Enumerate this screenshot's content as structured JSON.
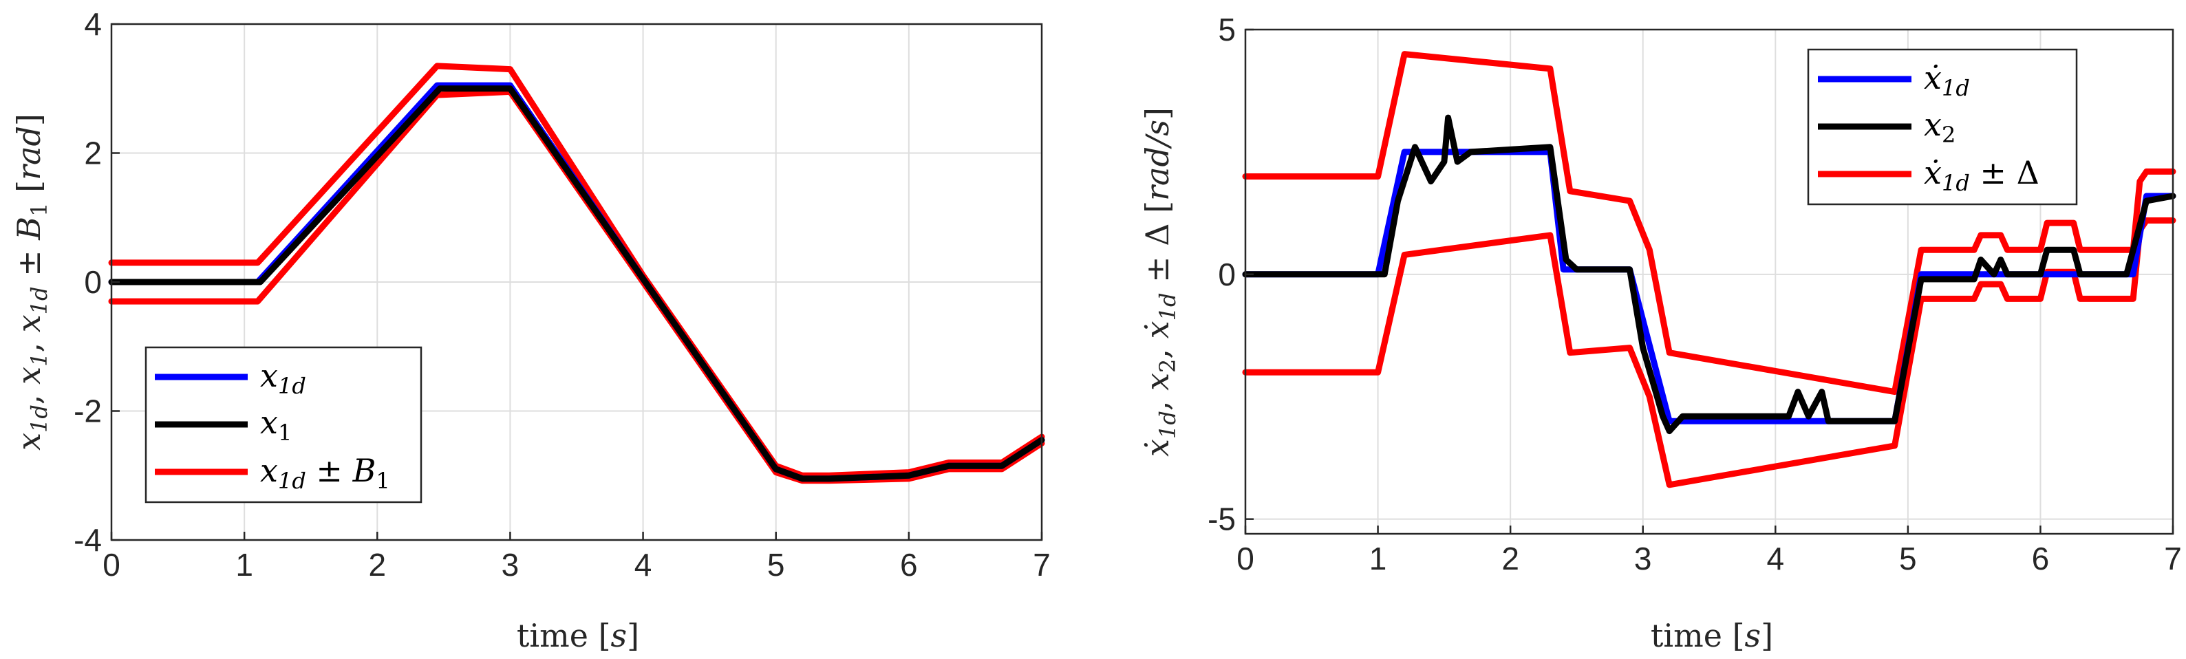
{
  "chart_data": [
    {
      "type": "line",
      "xlabel": "time [s]",
      "ylabel": "x1d, x1, x1d ± B1 [rad]",
      "xlim": [
        0,
        7
      ],
      "ylim": [
        -4,
        4
      ],
      "xticks": [
        "0",
        "1",
        "2",
        "3",
        "4",
        "5",
        "6",
        "7"
      ],
      "yticks": [
        "-4",
        "-2",
        "0",
        "2",
        "4"
      ],
      "grid": true,
      "legend_placement": "bottom-left",
      "series": [
        {
          "name": "x1d",
          "color": "#0000ff",
          "x": [
            0,
            1.1,
            2.45,
            3.0,
            4.0,
            5.0,
            5.2,
            5.4,
            6.0,
            6.3,
            6.7,
            7.0
          ],
          "y": [
            0,
            0,
            3.05,
            3.05,
            0.05,
            -2.9,
            -3.05,
            -3.05,
            -3.0,
            -2.85,
            -2.85,
            -2.45
          ]
        },
        {
          "name": "x1",
          "color": "#000000",
          "x": [
            0,
            1.12,
            2.47,
            3.0,
            4.0,
            5.0,
            5.2,
            5.4,
            6.0,
            6.3,
            6.7,
            7.0
          ],
          "y": [
            0,
            0,
            3.0,
            3.0,
            0.05,
            -2.9,
            -3.05,
            -3.05,
            -3.0,
            -2.85,
            -2.85,
            -2.45
          ]
        },
        {
          "name": "x1d ± B1",
          "color": "#ff0000",
          "x": [
            0,
            1.1,
            2.45,
            3.0,
            4.0,
            5.0,
            5.2,
            5.4,
            6.0,
            6.3,
            6.7,
            7.0
          ],
          "y": [
            0.3,
            0.3,
            3.35,
            3.3,
            0.1,
            -2.85,
            -3.0,
            -3.0,
            -2.95,
            -2.8,
            -2.8,
            -2.4
          ],
          "y2": [
            -0.3,
            -0.3,
            2.9,
            2.95,
            0.0,
            -2.95,
            -3.08,
            -3.08,
            -3.05,
            -2.9,
            -2.9,
            -2.5
          ]
        }
      ]
    },
    {
      "type": "line",
      "xlabel": "time [s]",
      "ylabel": "ẋ1d, x2, ẋ1d ± Δ [rad/s]",
      "xlim": [
        0,
        7
      ],
      "ylim": [
        -5.3,
        5
      ],
      "xticks": [
        "0",
        "1",
        "2",
        "3",
        "4",
        "5",
        "6",
        "7"
      ],
      "yticks": [
        "-5",
        "0",
        "5"
      ],
      "grid": true,
      "legend_placement": "top-right",
      "series": [
        {
          "name": "ẋ1d",
          "color": "#0000ff",
          "x": [
            0,
            1.0,
            1.2,
            2.3,
            2.4,
            2.9,
            3.2,
            4.9,
            5.1,
            5.5,
            6.0,
            6.3,
            6.7,
            6.8,
            7.0
          ],
          "y": [
            0,
            0,
            2.5,
            2.5,
            0.1,
            0.1,
            -3.0,
            -3.0,
            0.0,
            0.0,
            0.0,
            0.0,
            0.0,
            1.6,
            1.6
          ]
        },
        {
          "name": "x2",
          "color": "#000000",
          "x": [
            0,
            1.05,
            1.15,
            1.28,
            1.4,
            1.5,
            1.53,
            1.6,
            1.7,
            2.3,
            2.42,
            2.5,
            2.9,
            3.0,
            3.15,
            3.2,
            3.3,
            4.1,
            4.17,
            4.25,
            4.35,
            4.4,
            4.9,
            5.1,
            5.5,
            5.55,
            5.65,
            5.7,
            5.75,
            6.0,
            6.05,
            6.25,
            6.3,
            6.65,
            6.75,
            6.8,
            7.0
          ],
          "y": [
            0,
            0,
            1.5,
            2.6,
            1.9,
            2.3,
            3.2,
            2.3,
            2.5,
            2.6,
            0.3,
            0.1,
            0.1,
            -1.5,
            -2.9,
            -3.2,
            -2.9,
            -2.9,
            -2.4,
            -2.9,
            -2.4,
            -3.0,
            -3.0,
            -0.1,
            -0.1,
            0.3,
            0.0,
            0.3,
            0.0,
            0.0,
            0.5,
            0.5,
            0.0,
            0.0,
            1.0,
            1.5,
            1.6
          ]
        },
        {
          "name": "ẋ1d ± Δ",
          "color": "#ff0000",
          "x": [
            0,
            1.0,
            1.2,
            2.3,
            2.45,
            2.9,
            3.05,
            3.2,
            4.9,
            5.1,
            5.5,
            5.55,
            5.7,
            5.75,
            6.0,
            6.05,
            6.25,
            6.3,
            6.7,
            6.75,
            6.8,
            7.0
          ],
          "y": [
            2.0,
            2.0,
            4.5,
            4.2,
            1.7,
            1.5,
            0.5,
            -1.6,
            -2.4,
            0.5,
            0.5,
            0.8,
            0.8,
            0.5,
            0.5,
            1.05,
            1.05,
            0.5,
            0.5,
            1.9,
            2.1,
            2.1
          ],
          "y2": [
            -2.0,
            -2.0,
            0.4,
            0.8,
            -1.6,
            -1.5,
            -2.5,
            -4.3,
            -3.5,
            -0.5,
            -0.5,
            -0.2,
            -0.2,
            -0.5,
            -0.5,
            0.05,
            0.05,
            -0.5,
            -0.5,
            0.9,
            1.1,
            1.1
          ]
        }
      ]
    }
  ]
}
